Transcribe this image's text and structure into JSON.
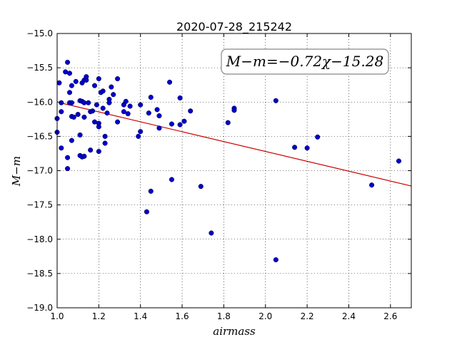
{
  "chart_data": {
    "type": "scatter",
    "title": "2020-07-28_215242",
    "xlabel": "airmass",
    "ylabel": "M−m",
    "xlim": [
      1.0,
      2.7
    ],
    "ylim": [
      -19.0,
      -15.0
    ],
    "xticks": [
      1.0,
      1.2,
      1.4,
      1.6,
      1.8,
      2.0,
      2.2,
      2.4,
      2.6
    ],
    "xtick_labels": [
      "1.0",
      "1.2",
      "1.4",
      "1.6",
      "1.8",
      "2.0",
      "2.2",
      "2.4",
      "2.6"
    ],
    "yticks": [
      -15.0,
      -15.5,
      -16.0,
      -16.5,
      -17.0,
      -17.5,
      -18.0,
      -18.5,
      -19.0
    ],
    "ytick_labels": [
      "−15.0",
      "−15.5",
      "−16.0",
      "−16.5",
      "−17.0",
      "−17.5",
      "−18.0",
      "−18.5",
      "−19.0"
    ],
    "grid": true,
    "annotation": "M−m=−0.72χ−15.28",
    "fit": {
      "slope": -0.72,
      "intercept": -15.28,
      "x_range": [
        1.02,
        2.7
      ],
      "color": "#cc0000"
    },
    "point_color": "#0000cc",
    "points": [
      [
        1.05,
        -15.42
      ],
      [
        1.04,
        -15.56
      ],
      [
        1.06,
        -15.58
      ],
      [
        1.01,
        -15.72
      ],
      [
        1.09,
        -15.7
      ],
      [
        1.07,
        -15.76
      ],
      [
        1.06,
        -15.86
      ],
      [
        1.12,
        -15.72
      ],
      [
        1.13,
        -15.68
      ],
      [
        1.14,
        -15.63
      ],
      [
        1.14,
        -15.68
      ],
      [
        1.18,
        -15.76
      ],
      [
        1.2,
        -15.66
      ],
      [
        1.21,
        -15.86
      ],
      [
        1.22,
        -15.84
      ],
      [
        1.26,
        -15.78
      ],
      [
        1.27,
        -15.89
      ],
      [
        1.29,
        -15.66
      ],
      [
        1.02,
        -16.01
      ],
      [
        1.06,
        -16.01
      ],
      [
        1.07,
        -16.01
      ],
      [
        1.11,
        -15.98
      ],
      [
        1.12,
        -15.99
      ],
      [
        1.13,
        -16.01
      ],
      [
        1.15,
        -16.01
      ],
      [
        1.19,
        -16.04
      ],
      [
        1.25,
        -15.96
      ],
      [
        1.25,
        -16.01
      ],
      [
        1.33,
        -15.99
      ],
      [
        1.32,
        -16.04
      ],
      [
        1.35,
        -16.06
      ],
      [
        1.02,
        -16.14
      ],
      [
        1.07,
        -16.21
      ],
      [
        1.08,
        -16.22
      ],
      [
        1.1,
        -16.18
      ],
      [
        1.13,
        -16.22
      ],
      [
        1.16,
        -16.14
      ],
      [
        1.17,
        -16.13
      ],
      [
        1.22,
        -16.09
      ],
      [
        1.24,
        -16.16
      ],
      [
        1.32,
        -16.14
      ],
      [
        1.34,
        -16.17
      ],
      [
        1.0,
        -16.24
      ],
      [
        1.18,
        -16.29
      ],
      [
        1.2,
        -16.31
      ],
      [
        1.2,
        -16.36
      ],
      [
        1.29,
        -16.29
      ],
      [
        1.0,
        -16.44
      ],
      [
        1.11,
        -16.48
      ],
      [
        1.23,
        -16.5
      ],
      [
        1.23,
        -16.6
      ],
      [
        1.07,
        -16.56
      ],
      [
        1.02,
        -16.67
      ],
      [
        1.16,
        -16.7
      ],
      [
        1.2,
        -16.72
      ],
      [
        1.11,
        -16.78
      ],
      [
        1.12,
        -16.8
      ],
      [
        1.13,
        -16.79
      ],
      [
        1.05,
        -16.81
      ],
      [
        1.05,
        -16.97
      ],
      [
        1.4,
        -16.04
      ],
      [
        1.4,
        -16.43
      ],
      [
        1.39,
        -16.5
      ],
      [
        1.45,
        -15.93
      ],
      [
        1.44,
        -16.16
      ],
      [
        1.48,
        -16.11
      ],
      [
        1.49,
        -16.2
      ],
      [
        1.49,
        -16.38
      ],
      [
        1.54,
        -15.71
      ],
      [
        1.55,
        -16.32
      ],
      [
        1.59,
        -15.94
      ],
      [
        1.59,
        -16.33
      ],
      [
        1.61,
        -16.28
      ],
      [
        1.64,
        -16.13
      ],
      [
        1.45,
        -17.3
      ],
      [
        1.55,
        -17.13
      ],
      [
        1.43,
        -17.6
      ],
      [
        1.69,
        -17.23
      ],
      [
        1.74,
        -17.91
      ],
      [
        1.82,
        -16.3
      ],
      [
        1.85,
        -16.09
      ],
      [
        1.85,
        -16.12
      ],
      [
        2.05,
        -15.98
      ],
      [
        2.05,
        -18.3
      ],
      [
        2.14,
        -16.66
      ],
      [
        2.2,
        -16.67
      ],
      [
        2.25,
        -16.51
      ],
      [
        2.51,
        -17.21
      ],
      [
        2.64,
        -16.86
      ]
    ]
  }
}
